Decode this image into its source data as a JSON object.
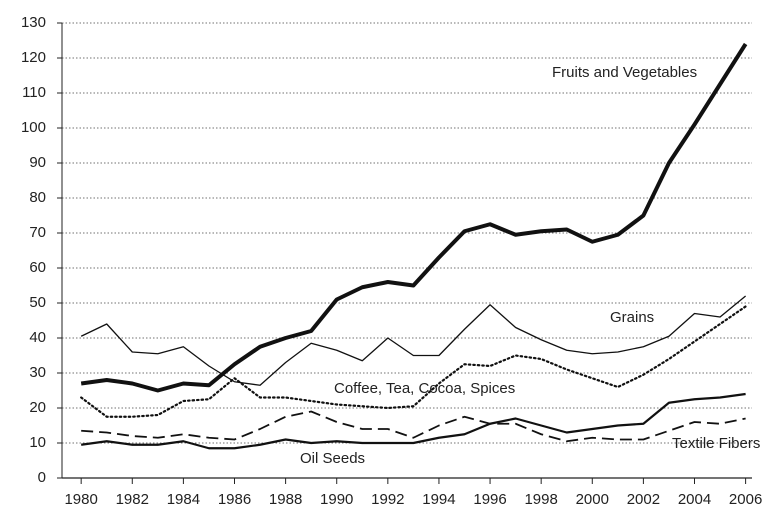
{
  "chart_data": {
    "type": "line",
    "x": [
      1980,
      1981,
      1982,
      1983,
      1984,
      1985,
      1986,
      1987,
      1988,
      1989,
      1990,
      1991,
      1992,
      1993,
      1994,
      1995,
      1996,
      1997,
      1998,
      1999,
      2000,
      2001,
      2002,
      2003,
      2004,
      2005,
      2006
    ],
    "series": [
      {
        "name": "Fruits and Vegetables",
        "color": "#111111",
        "linestyle": "solid",
        "linewidth": 4,
        "values": [
          27,
          28,
          27,
          25,
          27,
          26.5,
          32.5,
          37.5,
          40,
          42,
          51,
          54.5,
          56,
          55,
          63,
          70.5,
          72.5,
          69.5,
          70.5,
          71,
          67.5,
          69.5,
          75,
          90,
          101,
          112.5,
          124
        ]
      },
      {
        "name": "Grains",
        "color": "#111111",
        "linestyle": "solid",
        "linewidth": 1.3,
        "values": [
          40.5,
          44,
          36,
          35.5,
          37.5,
          32,
          27.5,
          26.5,
          33,
          38.5,
          36.5,
          33.5,
          40,
          35,
          35,
          42.5,
          49.5,
          43,
          39.5,
          36.5,
          35.5,
          36,
          37.5,
          40.5,
          47,
          46,
          52
        ]
      },
      {
        "name": "Coffee, Tea, Cocoa, Spices",
        "color": "#111111",
        "linestyle": "dotted",
        "linewidth": 2.2,
        "values": [
          23,
          17.5,
          17.5,
          18,
          22,
          22.5,
          28.5,
          23,
          23,
          22,
          21,
          20.5,
          20,
          20.5,
          27,
          32.5,
          32,
          35,
          34,
          31,
          28.5,
          26,
          29.5,
          34,
          39,
          44,
          49
        ]
      },
      {
        "name": "Textile Fibers",
        "color": "#111111",
        "linestyle": "dashed",
        "linewidth": 1.8,
        "values": [
          13.5,
          13,
          12,
          11.5,
          12.5,
          11.5,
          11,
          14,
          17.5,
          19,
          16,
          14,
          14,
          11.5,
          15,
          17.5,
          15.5,
          15.5,
          12.5,
          10.5,
          11.5,
          11,
          11,
          13.5,
          16,
          15.5,
          17
        ]
      },
      {
        "name": "Oil Seeds",
        "color": "#111111",
        "linestyle": "solid",
        "linewidth": 2.2,
        "values": [
          9.5,
          10.5,
          9.5,
          9.5,
          10.5,
          8.5,
          8.5,
          9.5,
          11,
          10,
          10.5,
          10,
          10,
          10,
          11.5,
          12.5,
          15.5,
          17,
          15,
          13,
          14,
          15,
          15.5,
          21.5,
          22.5,
          23,
          24
        ]
      }
    ],
    "xlim": [
      1979.25,
      2006.25
    ],
    "xticks": [
      1980,
      1982,
      1984,
      1986,
      1988,
      1990,
      1992,
      1994,
      1996,
      1998,
      2000,
      2002,
      2004,
      2006
    ],
    "ylim": [
      0,
      130
    ],
    "yticks": [
      0,
      10,
      20,
      30,
      40,
      50,
      60,
      70,
      80,
      90,
      100,
      110,
      120,
      130
    ],
    "grid": true
  }
}
